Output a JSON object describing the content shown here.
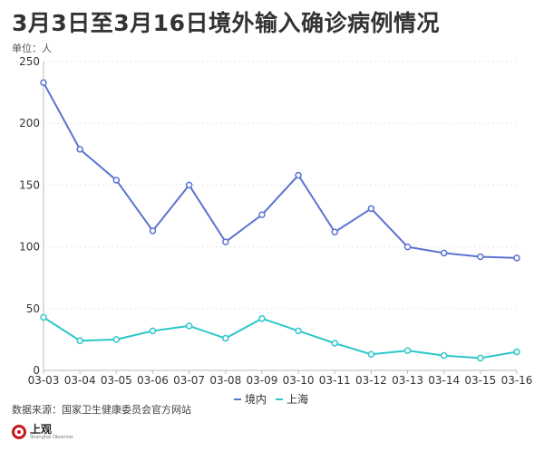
{
  "header": {
    "title": "3月3日至3月16日境外输入确诊病例情况",
    "unit_label": "单位：人"
  },
  "footer": {
    "source": "数据来源：国家卫生健康委员会官方网站",
    "logo_cn": "上观",
    "logo_en": "Shanghai Observer"
  },
  "colors": {
    "series_1": "#5b73d2",
    "series_2": "#2ec7c9",
    "grid": "#e6e6e6",
    "axis": "#bbbbbb"
  },
  "chart_data": {
    "type": "line",
    "title": "3月3日至3月16日境外输入确诊病例情况",
    "xlabel": "",
    "ylabel": "单位：人",
    "categories": [
      "03-03",
      "03-04",
      "03-05",
      "03-06",
      "03-07",
      "03-08",
      "03-09",
      "03-10",
      "03-11",
      "03-12",
      "03-13",
      "03-14",
      "03-15",
      "03-16"
    ],
    "ylim": [
      0,
      250
    ],
    "yticks": [
      0,
      50,
      100,
      150,
      200,
      250
    ],
    "grid": true,
    "legend_position": "bottom",
    "series": [
      {
        "name": "境内",
        "values": [
          233,
          179,
          154,
          113,
          150,
          104,
          126,
          158,
          112,
          131,
          100,
          95,
          92,
          91
        ]
      },
      {
        "name": "上海",
        "values": [
          43,
          24,
          25,
          32,
          36,
          26,
          42,
          32,
          22,
          13,
          16,
          12,
          10,
          15
        ]
      }
    ]
  }
}
